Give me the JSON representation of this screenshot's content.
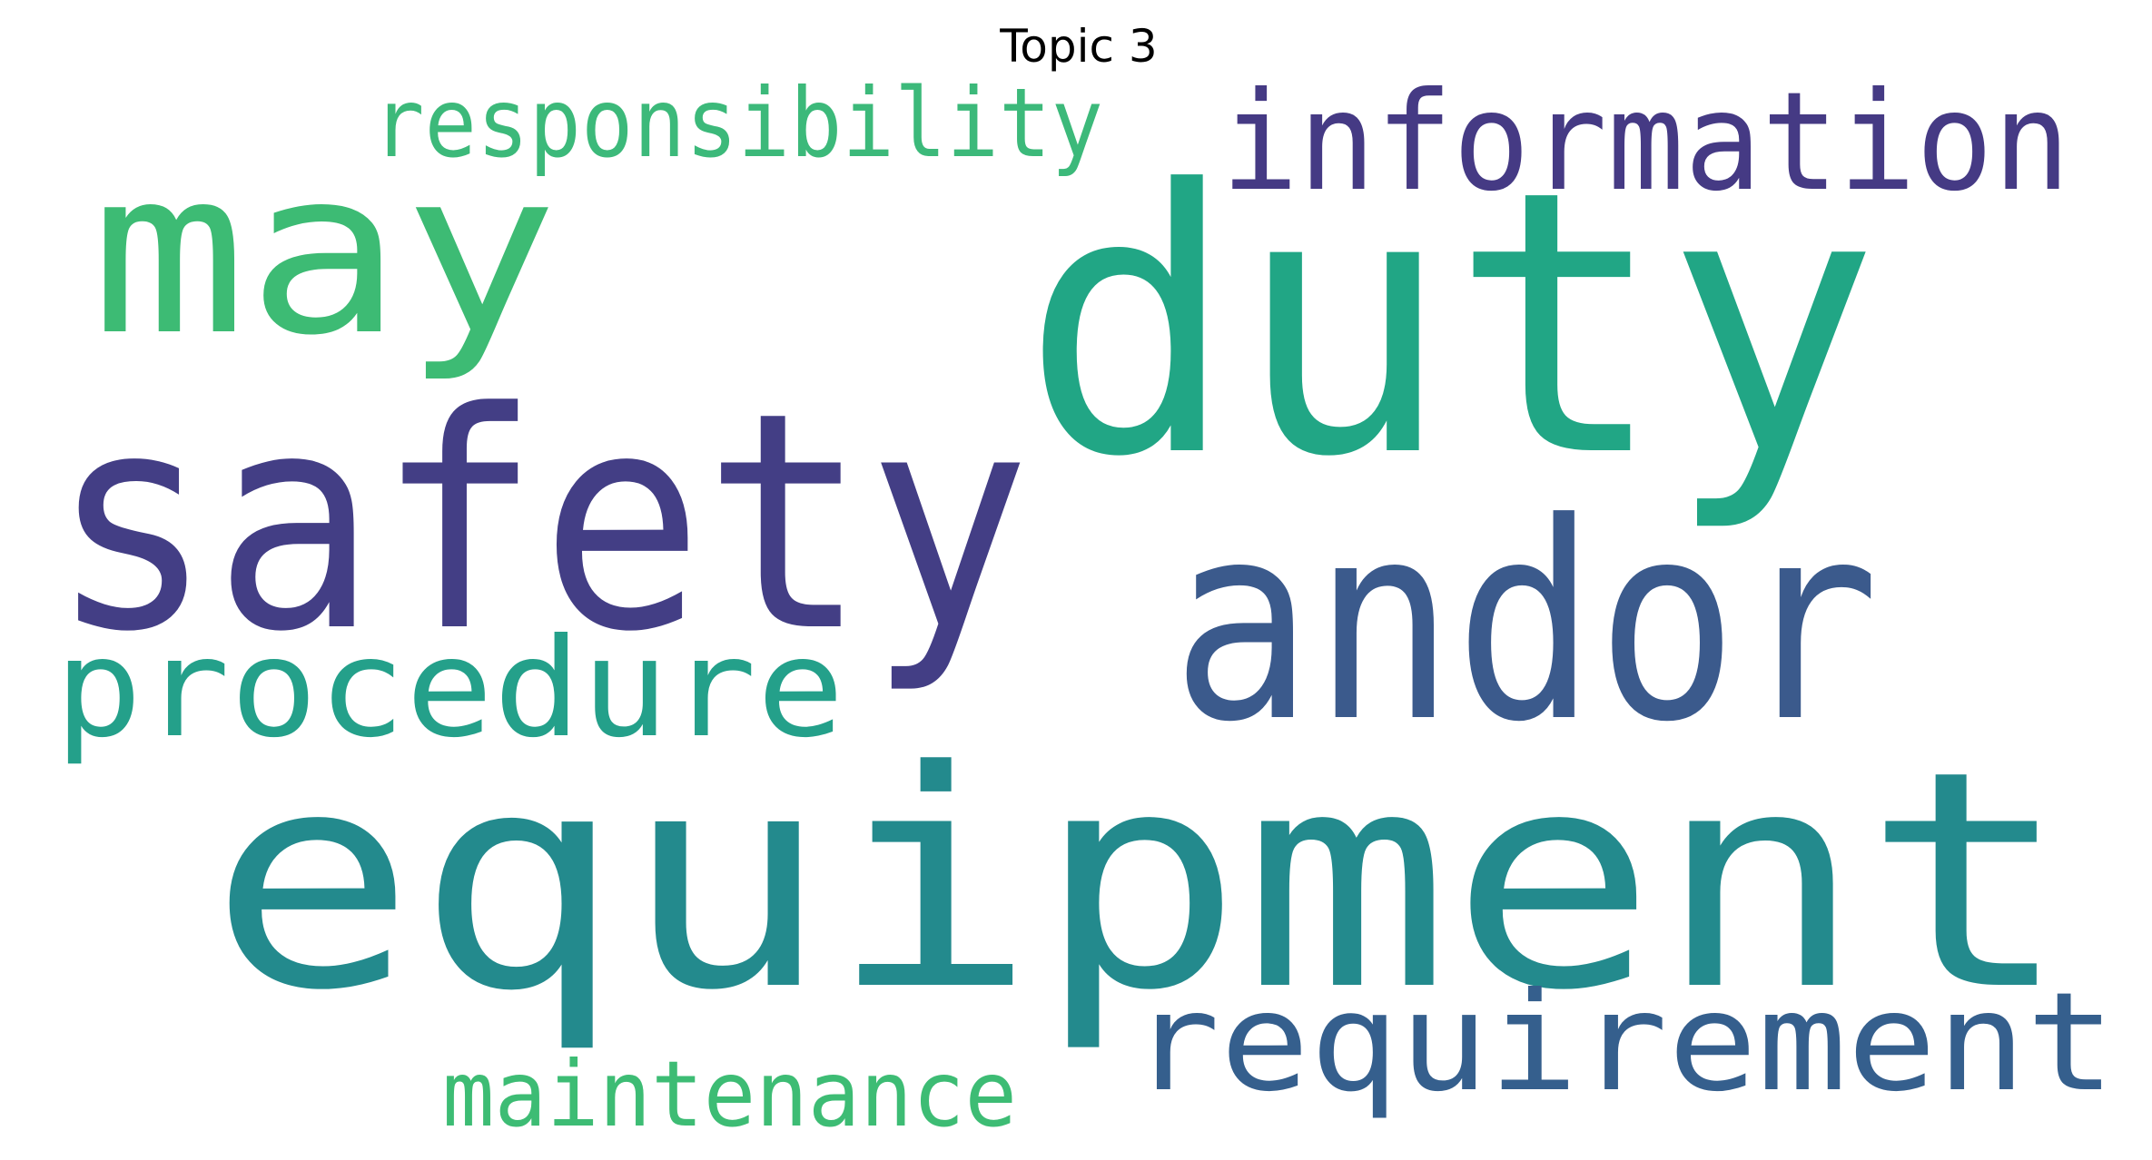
{
  "chart_data": {
    "type": "wordcloud",
    "title": "Topic 3",
    "words": [
      {
        "text": "duty",
        "color": "#21a685"
      },
      {
        "text": "equipment",
        "color": "#238a8d"
      },
      {
        "text": "safety",
        "color": "#433e85"
      },
      {
        "text": "andor",
        "color": "#3b5a8c"
      },
      {
        "text": "may",
        "color": "#3dbb74"
      },
      {
        "text": "information",
        "color": "#453a84"
      },
      {
        "text": "procedure",
        "color": "#24a08a"
      },
      {
        "text": "requirement",
        "color": "#355f8d"
      },
      {
        "text": "responsibility",
        "color": "#3cb97a"
      },
      {
        "text": "maintenance",
        "color": "#3dbc74"
      }
    ]
  }
}
